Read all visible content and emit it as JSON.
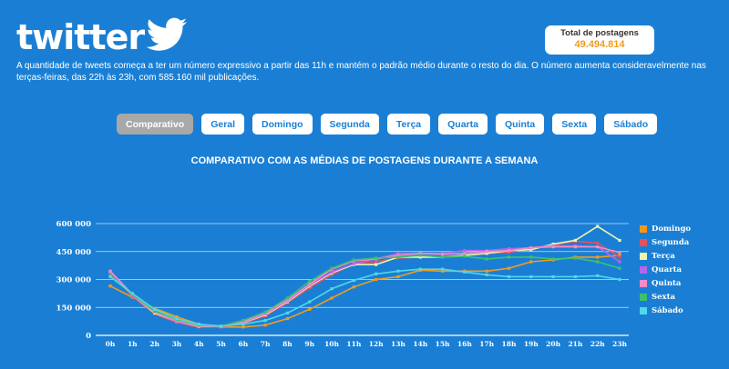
{
  "brand": {
    "logo_text": "twitter"
  },
  "total": {
    "label": "Total de postagens",
    "value": "49.494.814"
  },
  "description": "A quantidade de tweets começa a ter um número expressivo a partir das 11h e mantém o padrão médio durante o resto do dia. O número aumenta consideravelmente nas terças-feiras, das 22h às 23h, com 585.160 mil publicações.",
  "tabs": [
    {
      "label": "Comparativo",
      "active": true
    },
    {
      "label": "Geral",
      "active": false
    },
    {
      "label": "Domingo",
      "active": false
    },
    {
      "label": "Segunda",
      "active": false
    },
    {
      "label": "Terça",
      "active": false
    },
    {
      "label": "Quarta",
      "active": false
    },
    {
      "label": "Quinta",
      "active": false
    },
    {
      "label": "Sexta",
      "active": false
    },
    {
      "label": "Sábado",
      "active": false
    }
  ],
  "colors": {
    "background": "#1a7fd4",
    "tab_active": "#a8a8a8",
    "total_value": "#f39a1e"
  },
  "chart_data": {
    "type": "line",
    "title": "COMPARATIVO COM AS MÉDIAS DE POSTAGENS DURANTE A SEMANA",
    "xlabel": "",
    "ylabel": "",
    "ylim": [
      0,
      600000
    ],
    "yticks": [
      0,
      150000,
      300000,
      450000,
      600000
    ],
    "ytick_labels": [
      "0",
      "150 000",
      "300 000",
      "450 000",
      "600 000"
    ],
    "grid": "horizontal",
    "legend_position": "right",
    "x": [
      "0h",
      "1h",
      "2h",
      "3h",
      "4h",
      "5h",
      "6h",
      "7h",
      "8h",
      "9h",
      "10h",
      "11h",
      "12h",
      "13h",
      "14h",
      "15h",
      "16h",
      "17h",
      "18h",
      "19h",
      "20h",
      "21h",
      "22h",
      "23h"
    ],
    "series": [
      {
        "name": "Domingo",
        "color": "#f39a1e",
        "values": [
          265000,
          205000,
          145000,
          100000,
          60000,
          45000,
          45000,
          55000,
          90000,
          140000,
          200000,
          260000,
          300000,
          315000,
          350000,
          345000,
          345000,
          345000,
          360000,
          395000,
          405000,
          420000,
          420000,
          430000
        ]
      },
      {
        "name": "Segunda",
        "color": "#e8505b",
        "values": [
          335000,
          210000,
          115000,
          70000,
          45000,
          45000,
          65000,
          105000,
          175000,
          255000,
          325000,
          385000,
          395000,
          415000,
          420000,
          420000,
          430000,
          440000,
          445000,
          470000,
          485000,
          505000,
          495000,
          420000
        ]
      },
      {
        "name": "Terça",
        "color": "#eaf5b0",
        "values": [
          340000,
          215000,
          120000,
          75000,
          48000,
          48000,
          68000,
          110000,
          180000,
          265000,
          335000,
          380000,
          380000,
          420000,
          420000,
          420000,
          430000,
          440000,
          455000,
          460000,
          490000,
          510000,
          585000,
          510000
        ]
      },
      {
        "name": "Quarta",
        "color": "#b565f0",
        "values": [
          340000,
          215000,
          125000,
          75000,
          50000,
          48000,
          70000,
          115000,
          185000,
          270000,
          340000,
          385000,
          410000,
          440000,
          440000,
          440000,
          455000,
          455000,
          465000,
          470000,
          480000,
          480000,
          475000,
          395000
        ]
      },
      {
        "name": "Quinta",
        "color": "#f28cc4",
        "values": [
          345000,
          220000,
          125000,
          78000,
          50000,
          48000,
          72000,
          120000,
          190000,
          275000,
          355000,
          400000,
          410000,
          430000,
          440000,
          435000,
          440000,
          450000,
          455000,
          470000,
          475000,
          475000,
          475000,
          445000
        ]
      },
      {
        "name": "Sexta",
        "color": "#3fbf6f",
        "values": [
          320000,
          220000,
          130000,
          85000,
          55000,
          50000,
          80000,
          125000,
          200000,
          290000,
          360000,
          405000,
          415000,
          420000,
          430000,
          420000,
          425000,
          410000,
          420000,
          420000,
          410000,
          415000,
          395000,
          360000
        ]
      },
      {
        "name": "Sábado",
        "color": "#4fd8e8",
        "values": [
          315000,
          225000,
          140000,
          90000,
          60000,
          50000,
          60000,
          80000,
          120000,
          180000,
          250000,
          295000,
          330000,
          345000,
          355000,
          355000,
          340000,
          325000,
          315000,
          315000,
          315000,
          315000,
          320000,
          300000
        ]
      }
    ]
  }
}
